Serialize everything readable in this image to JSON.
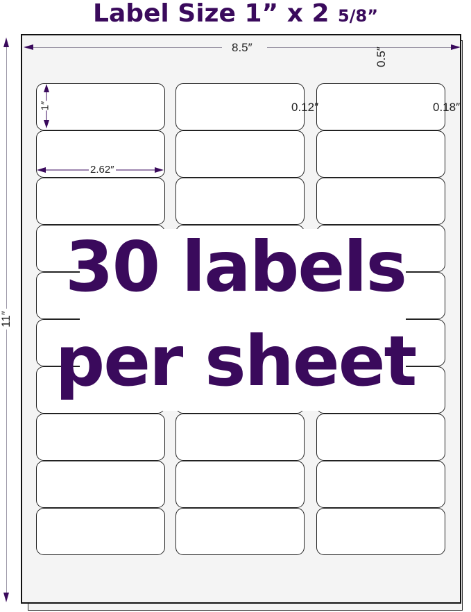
{
  "title": {
    "main": "Label Size 1” x 2 ",
    "fraction": "5/8”"
  },
  "dimensions": {
    "sheet_width": "8.5″",
    "sheet_height": "11″",
    "top_margin": "0.5″",
    "label_height": "1″",
    "label_width": "2.62″",
    "column_gap": "0.12″",
    "side_margin": "0.18″"
  },
  "labels": {
    "columns": 3,
    "rows": 10
  },
  "headline": {
    "line1": "30 labels",
    "line2": "per sheet"
  },
  "colors": {
    "accent": "#3a0a5c",
    "sheet": "#f4f4f4",
    "label": "#ffffff"
  }
}
